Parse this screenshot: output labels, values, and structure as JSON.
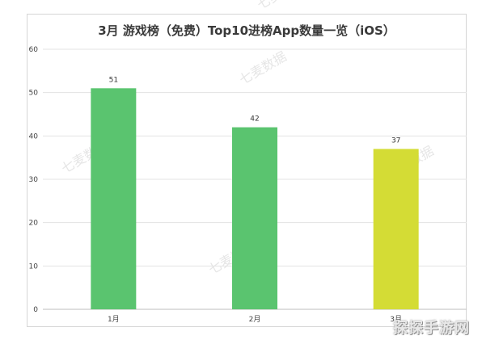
{
  "chart_data": {
    "type": "bar",
    "title": "3月 游戏榜（免费）Top10进榜App数量一览（iOS）",
    "categories": [
      "1月",
      "2月",
      "3月"
    ],
    "values": [
      51,
      42,
      37
    ],
    "colors": [
      "#5ac46f",
      "#5ac46f",
      "#d4dc35"
    ],
    "ylim": [
      0,
      60
    ],
    "yticks": [
      0,
      10,
      20,
      30,
      40,
      50,
      60
    ],
    "grid": true,
    "xlabel": "",
    "ylabel": ""
  },
  "watermark": {
    "text": "七麦数据"
  },
  "site_mark": "探探手游网"
}
